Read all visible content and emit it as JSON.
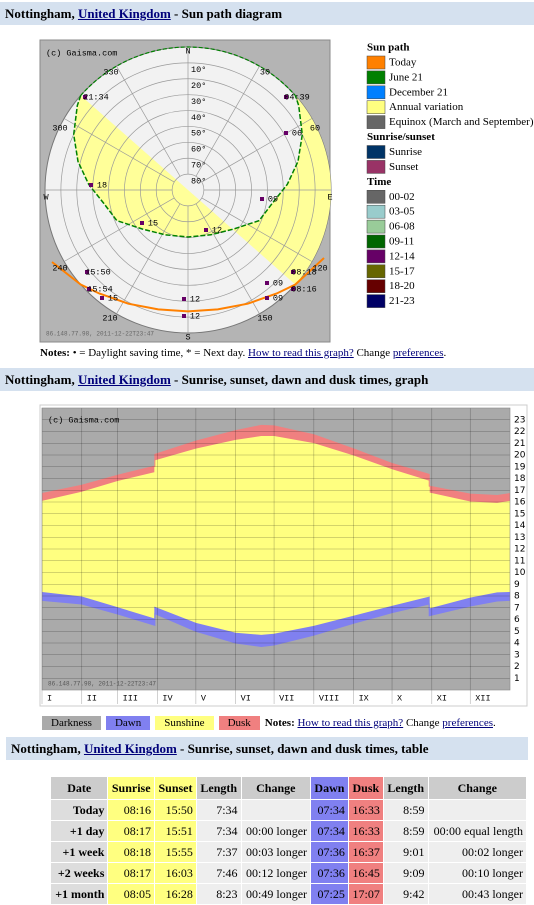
{
  "sun_path": {
    "header": {
      "city": "Nottingham,",
      "country": "United Kingdom",
      "title": "- Sun path diagram"
    },
    "diagram": {
      "copyright": "(c) Gaisma.com",
      "directions": [
        "N",
        "E",
        "S",
        "W"
      ],
      "altitudes": [
        "10°",
        "20°",
        "30°",
        "40°",
        "50°",
        "60°",
        "70°",
        "80°"
      ],
      "azimuths": [
        "30",
        "60",
        "120",
        "150",
        "210",
        "240",
        "300",
        "330"
      ],
      "time_labels": [
        "21:34",
        "04:39",
        "18",
        "06",
        "15",
        "12",
        "09",
        "15:50",
        "15:54",
        "15",
        "12",
        "09",
        "08:18",
        "08:16",
        "09",
        "12"
      ],
      "watermark": "86.148.77.98, 2011-12-22T23:47"
    },
    "legend": [
      {
        "title": "Sun path",
        "items": [
          {
            "name": "Today",
            "color": "#ff8000"
          },
          {
            "name": "June 21",
            "color": "#008000"
          },
          {
            "name": "December 21",
            "color": "#0080ff"
          },
          {
            "name": "Annual variation",
            "color": "#ffff80"
          },
          {
            "name": "Equinox (March and September)",
            "color": "#666666"
          }
        ]
      },
      {
        "title": "Sunrise/sunset",
        "items": [
          {
            "name": "Sunrise",
            "color": "#003366"
          },
          {
            "name": "Sunset",
            "color": "#993366"
          }
        ]
      },
      {
        "title": "Time",
        "items": [
          {
            "name": "00-02",
            "color": "#666666"
          },
          {
            "name": "03-05",
            "color": "#99cccc"
          },
          {
            "name": "06-08",
            "color": "#99cc99"
          },
          {
            "name": "09-11",
            "color": "#006600"
          },
          {
            "name": "12-14",
            "color": "#660066"
          },
          {
            "name": "15-17",
            "color": "#666600"
          },
          {
            "name": "18-20",
            "color": "#660000"
          },
          {
            "name": "21-23",
            "color": "#000066"
          }
        ]
      }
    ],
    "notes": {
      "label": "Notes:",
      "text": "• = Daylight saving time, * = Next day.",
      "link": "How to read this graph?",
      "change": "Change",
      "preferences": "preferences",
      "end": "."
    }
  },
  "graph": {
    "header": {
      "city": "Nottingham,",
      "country": "United Kingdom",
      "title": "- Sunrise, sunset, dawn and dusk times, graph"
    },
    "notes": {
      "label": "Notes:",
      "link": "How to read this graph?",
      "change": "Change",
      "preferences": "preferences",
      "end": "."
    }
  },
  "chart_data": {
    "type": "area",
    "x": [
      0,
      31,
      59,
      88,
      88,
      120,
      151,
      171,
      181,
      212,
      243,
      273,
      302,
      302,
      334,
      355,
      365
    ],
    "series": [
      {
        "values": [
          7.63,
          7.32,
          6.47,
          5.5,
          6.5,
          5.0,
          4.0,
          3.7,
          3.83,
          4.67,
          5.68,
          6.58,
          7.32,
          6.32,
          7.15,
          7.57,
          7.63
        ]
      },
      {
        "values": [
          8.3,
          7.92,
          7.0,
          6.03,
          7.03,
          5.67,
          4.83,
          4.65,
          4.75,
          5.42,
          6.28,
          7.12,
          7.9,
          6.9,
          7.82,
          8.27,
          8.3
        ]
      },
      {
        "values": [
          16.05,
          16.83,
          17.75,
          18.5,
          19.5,
          20.5,
          21.25,
          21.57,
          21.57,
          20.97,
          19.92,
          18.75,
          17.77,
          16.77,
          16.0,
          15.88,
          16.05
        ]
      },
      {
        "values": [
          16.72,
          17.43,
          18.28,
          19.05,
          20.05,
          21.18,
          22.08,
          22.52,
          22.48,
          21.72,
          20.52,
          19.28,
          18.35,
          17.35,
          16.67,
          16.55,
          16.72
        ]
      }
    ],
    "bands": [
      {
        "name": "Darkness",
        "color": "#aaaaaa"
      },
      {
        "name": "Dawn",
        "color": "#8080f0"
      },
      {
        "name": "Sunshine",
        "color": "#ffff80"
      },
      {
        "name": "Dusk",
        "color": "#f08080"
      }
    ],
    "xlim": [
      0,
      365
    ],
    "xticks": [
      {
        "value": 0,
        "label": "I"
      },
      {
        "value": 31,
        "label": "II"
      },
      {
        "value": 59,
        "label": "III"
      },
      {
        "value": 90,
        "label": "IV"
      },
      {
        "value": 120,
        "label": "V"
      },
      {
        "value": 151,
        "label": "VI"
      },
      {
        "value": 181,
        "label": "VII"
      },
      {
        "value": 212,
        "label": "VIII"
      },
      {
        "value": 243,
        "label": "IX"
      },
      {
        "value": 273,
        "label": "X"
      },
      {
        "value": 304,
        "label": "XI"
      },
      {
        "value": 334,
        "label": "XII"
      }
    ],
    "ylim": [
      0,
      24
    ],
    "yticks": [
      1,
      2,
      3,
      4,
      5,
      6,
      7,
      8,
      9,
      10,
      11,
      12,
      13,
      14,
      15,
      16,
      17,
      18,
      19,
      20,
      21,
      22,
      23
    ],
    "grid": true,
    "annotations": [
      "(c) Gaisma.com",
      "86.148.77.98, 2011-12-22T23:47"
    ]
  },
  "table_section": {
    "header": {
      "city": "Nottingham,",
      "country": "United Kingdom",
      "title": "- Sunrise, sunset, dawn and dusk times, table"
    },
    "table": {
      "columns": [
        "Date",
        "Sunrise",
        "Sunset",
        "Length",
        "Change",
        "Dawn",
        "Dusk",
        "Length",
        "Change"
      ],
      "rows": [
        [
          "Today",
          "08:16",
          "15:50",
          "7:34",
          null,
          "07:34",
          "16:33",
          "8:59",
          null
        ],
        [
          "+1 day",
          "08:17",
          "15:51",
          "7:34",
          "00:00 longer",
          "07:34",
          "16:33",
          "8:59",
          "00:00 equal length"
        ],
        [
          "+1 week",
          "08:18",
          "15:55",
          "7:37",
          "00:03 longer",
          "07:36",
          "16:37",
          "9:01",
          "00:02 longer"
        ],
        [
          "+2 weeks",
          "08:17",
          "16:03",
          "7:46",
          "00:12 longer",
          "07:36",
          "16:45",
          "9:09",
          "00:10 longer"
        ],
        [
          "+1 month",
          "08:05",
          "16:28",
          "8:23",
          "00:49 longer",
          "07:25",
          "17:07",
          "9:42",
          "00:43 longer"
        ]
      ]
    }
  }
}
